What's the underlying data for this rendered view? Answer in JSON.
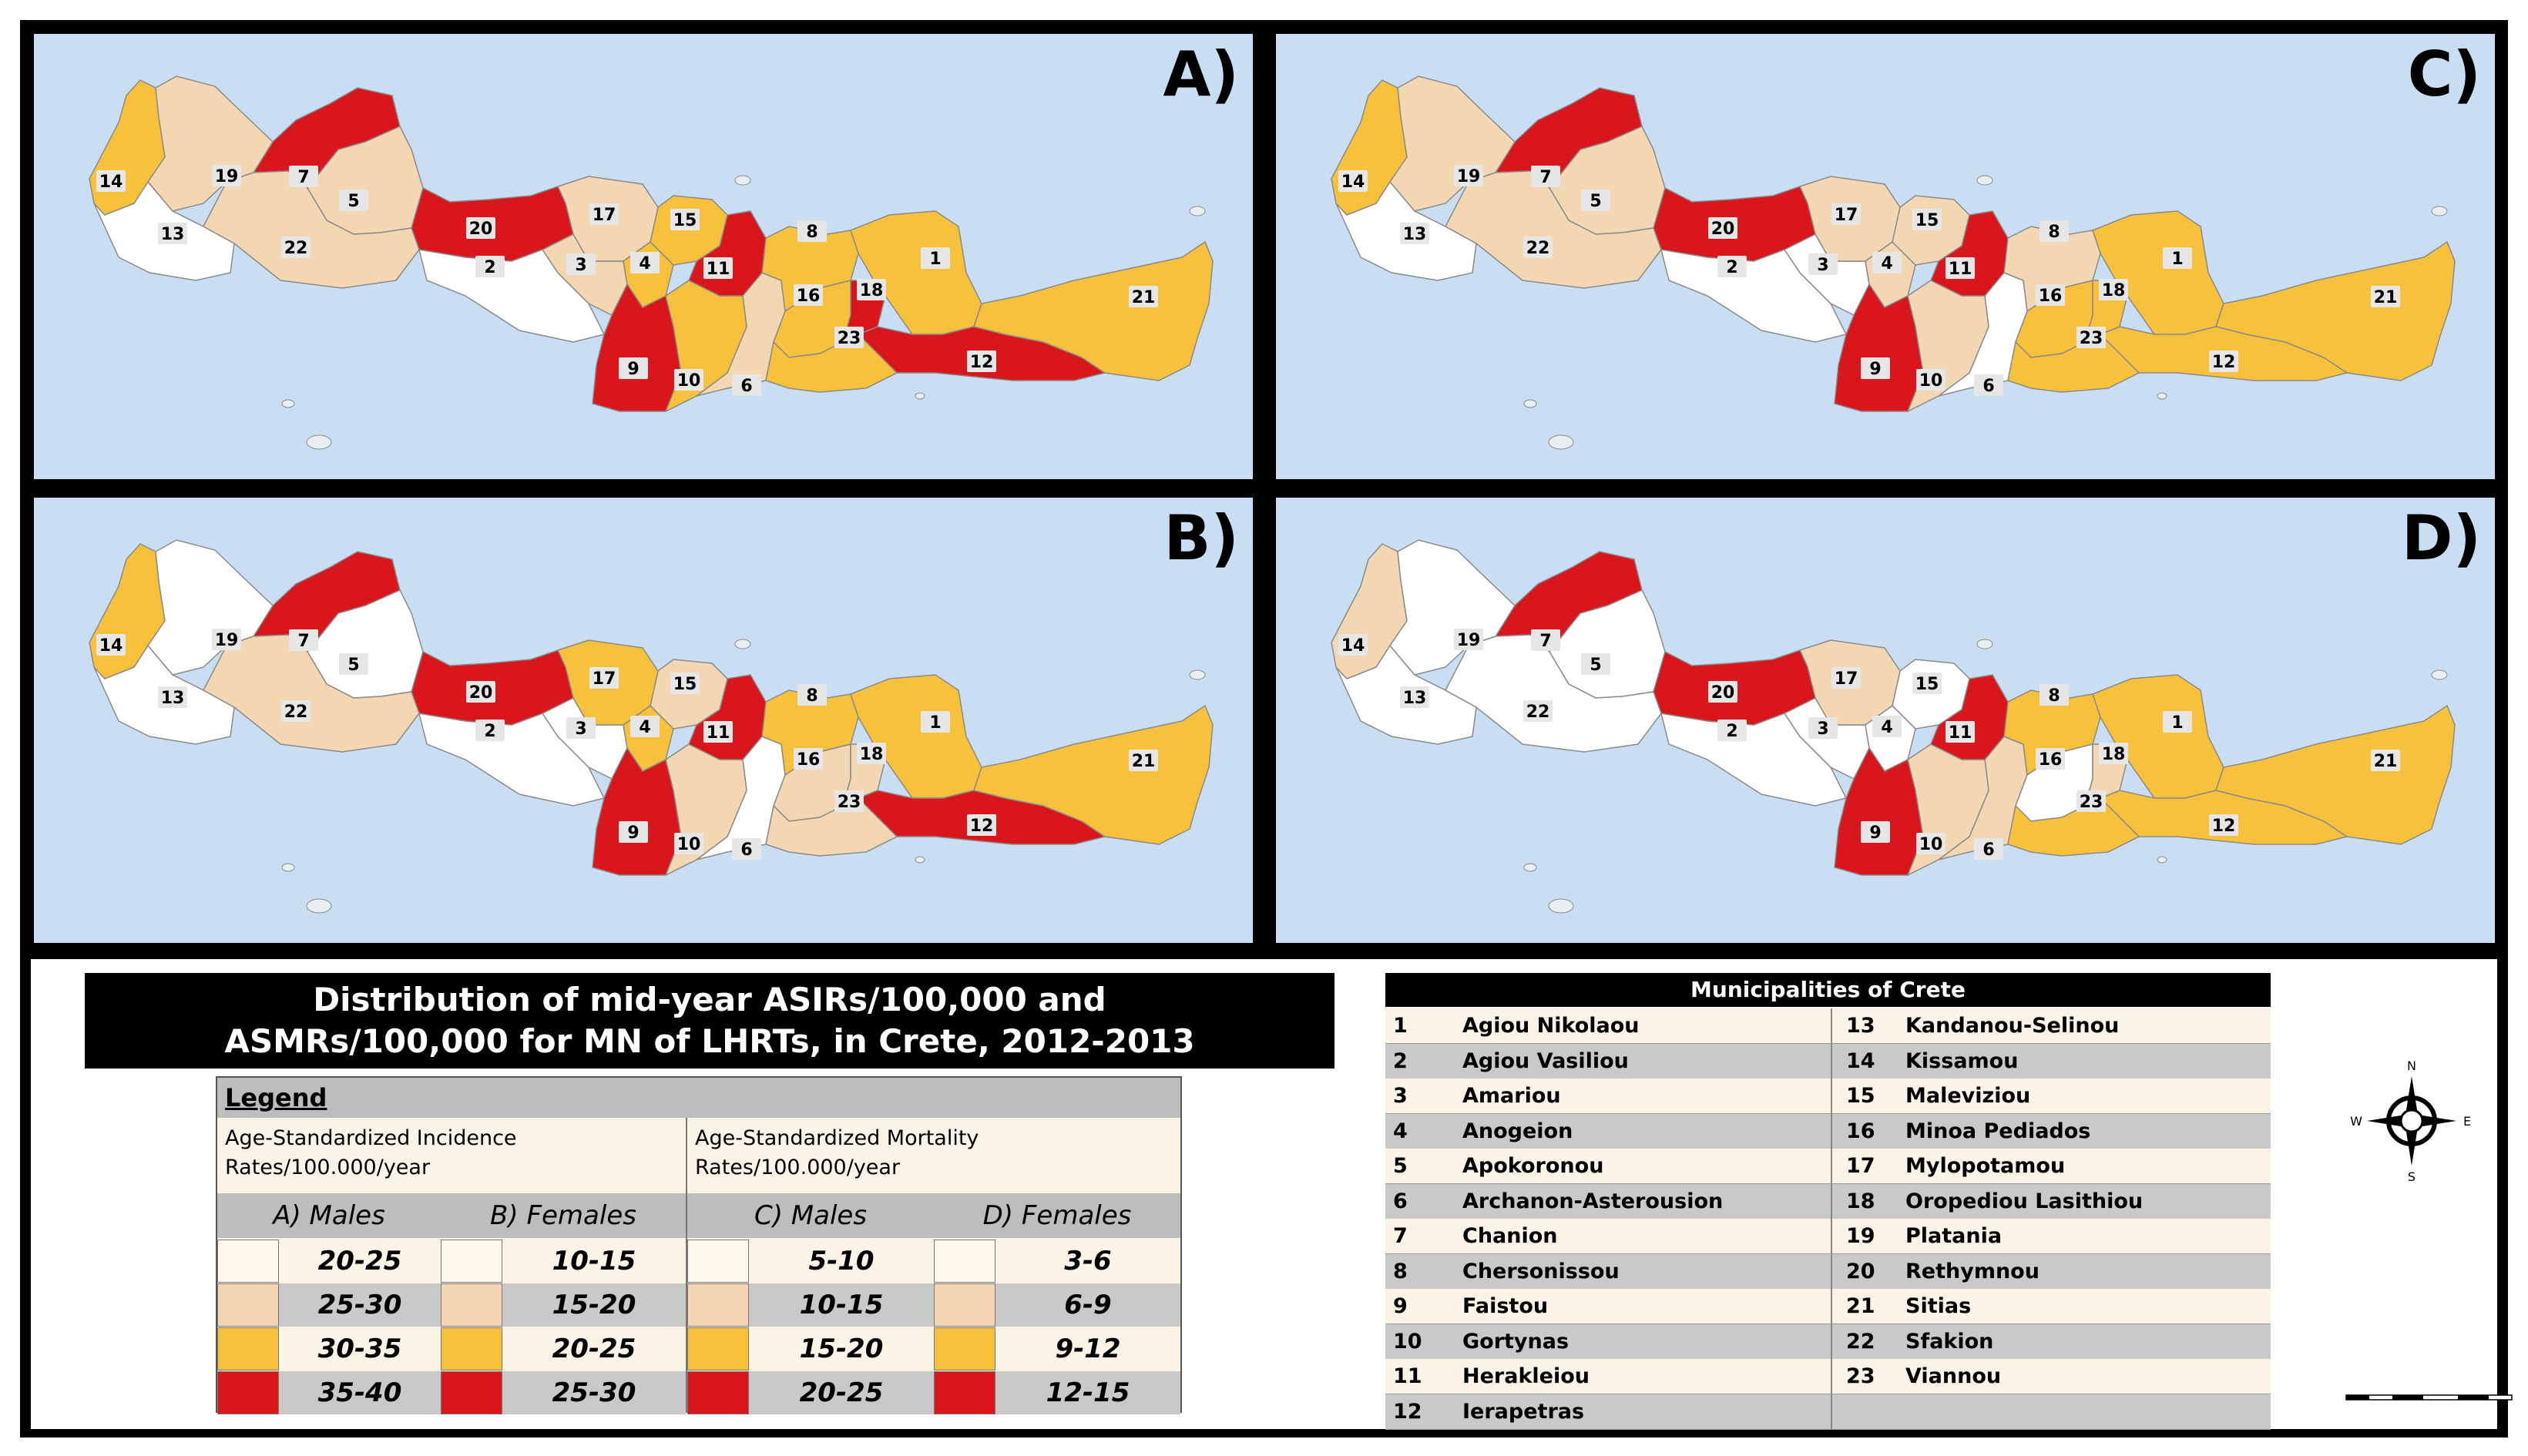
{
  "panels": [
    {
      "id": "A",
      "label": "A)",
      "colors": {
        "1": "#f7c13b",
        "2": "#ffffff",
        "3": "#f3d7b3",
        "4": "#f7c13b",
        "5": "#f3d7b3",
        "6": "#f3d7b3",
        "7": "#d9161c",
        "8": "#f7c13b",
        "9": "#d9161c",
        "10": "#f7c13b",
        "11": "#d9161c",
        "12": "#d9161c",
        "13": "#ffffff",
        "14": "#f7c13b",
        "15": "#f7c13b",
        "16": "#f7c13b",
        "17": "#f3d7b3",
        "18": "#d9161c",
        "19": "#f3d7b3",
        "20": "#d9161c",
        "21": "#f7c13b",
        "22": "#f3d7b3",
        "23": "#f7c13b"
      }
    },
    {
      "id": "B",
      "label": "B)",
      "colors": {
        "1": "#f7c13b",
        "2": "#ffffff",
        "3": "#ffffff",
        "4": "#f7c13b",
        "5": "#ffffff",
        "6": "#ffffff",
        "7": "#d9161c",
        "8": "#f7c13b",
        "9": "#d9161c",
        "10": "#f3d7b3",
        "11": "#d9161c",
        "12": "#d9161c",
        "13": "#ffffff",
        "14": "#f7c13b",
        "15": "#f3d7b3",
        "16": "#f3d7b3",
        "17": "#f7c13b",
        "18": "#f3d7b3",
        "19": "#ffffff",
        "20": "#d9161c",
        "21": "#f7c13b",
        "22": "#f3d7b3",
        "23": "#f3d7b3"
      }
    },
    {
      "id": "C",
      "label": "C)",
      "colors": {
        "1": "#f7c13b",
        "2": "#ffffff",
        "3": "#ffffff",
        "4": "#f3d7b3",
        "5": "#f3d7b3",
        "6": "#ffffff",
        "7": "#d9161c",
        "8": "#f3d7b3",
        "9": "#d9161c",
        "10": "#f3d7b3",
        "11": "#d9161c",
        "12": "#f7c13b",
        "13": "#ffffff",
        "14": "#f7c13b",
        "15": "#f3d7b3",
        "16": "#f7c13b",
        "17": "#f3d7b3",
        "18": "#f7c13b",
        "19": "#f3d7b3",
        "20": "#d9161c",
        "21": "#f7c13b",
        "22": "#f3d7b3",
        "23": "#f7c13b"
      }
    },
    {
      "id": "D",
      "label": "D)",
      "colors": {
        "1": "#f7c13b",
        "2": "#ffffff",
        "3": "#ffffff",
        "4": "#ffffff",
        "5": "#ffffff",
        "6": "#f3d7b3",
        "7": "#d9161c",
        "8": "#f7c13b",
        "9": "#d9161c",
        "10": "#f3d7b3",
        "11": "#d9161c",
        "12": "#f7c13b",
        "13": "#ffffff",
        "14": "#f3d7b3",
        "15": "#ffffff",
        "16": "#ffffff",
        "17": "#f3d7b3",
        "18": "#f3d7b3",
        "19": "#ffffff",
        "20": "#d9161c",
        "21": "#f7c13b",
        "22": "#ffffff",
        "23": "#f7c13b"
      }
    }
  ],
  "title": {
    "line1": "Distribution of mid-year ASIRs/100,000 and",
    "line2": "ASMRs/100,000 for MN of LHRTs, in Crete, 2012-2013"
  },
  "legend": {
    "heading": "Legend",
    "incidence_caption_1": "Age-Standardized Incidence",
    "incidence_caption_2": "Rates/100.000/year",
    "mortality_caption_1": "Age-Standardized Mortality",
    "mortality_caption_2": "Rates/100.000/year",
    "columns": [
      {
        "header": "A) Males",
        "values": [
          "20-25",
          "25-30",
          "30-35",
          "35-40"
        ]
      },
      {
        "header": "B) Females",
        "values": [
          "10-15",
          "15-20",
          "20-25",
          "25-30"
        ]
      },
      {
        "header": "C) Males",
        "values": [
          "5-10",
          "10-15",
          "15-20",
          "20-25"
        ]
      },
      {
        "header": "D) Females",
        "values": [
          "3-6",
          "6-9",
          "9-12",
          "12-15"
        ]
      }
    ],
    "swatch_colors": [
      "#fff7ea",
      "#f3d7b3",
      "#f7c13b",
      "#d9161c"
    ]
  },
  "municipalities": {
    "title": "Municipalities of Crete",
    "left": [
      {
        "num": "1",
        "name": "Agiou Nikolaou"
      },
      {
        "num": "2",
        "name": "Agiou Vasiliou"
      },
      {
        "num": "3",
        "name": "Amariou"
      },
      {
        "num": "4",
        "name": "Anogeion"
      },
      {
        "num": "5",
        "name": "Apokoronou"
      },
      {
        "num": "6",
        "name": "Archanon-Asterousion"
      },
      {
        "num": "7",
        "name": "Chanion"
      },
      {
        "num": "8",
        "name": "Chersonissou"
      },
      {
        "num": "9",
        "name": "Faistou"
      },
      {
        "num": "10",
        "name": "Gortynas"
      },
      {
        "num": "11",
        "name": "Herakleiou"
      },
      {
        "num": "12",
        "name": "Ierapetras"
      }
    ],
    "right": [
      {
        "num": "13",
        "name": "Kandanou-Selinou"
      },
      {
        "num": "14",
        "name": "Kissamou"
      },
      {
        "num": "15",
        "name": "Maleviziou"
      },
      {
        "num": "16",
        "name": "Minoa Pediados"
      },
      {
        "num": "17",
        "name": "Mylopotamou"
      },
      {
        "num": "18",
        "name": "Oropediou Lasithiou"
      },
      {
        "num": "19",
        "name": "Platania"
      },
      {
        "num": "20",
        "name": "Rethymnou"
      },
      {
        "num": "21",
        "name": "Sitias"
      },
      {
        "num": "22",
        "name": "Sfakion"
      },
      {
        "num": "23",
        "name": "Viannou"
      }
    ]
  },
  "compass": {
    "n": "N",
    "s": "S",
    "e": "E",
    "w": "W"
  }
}
